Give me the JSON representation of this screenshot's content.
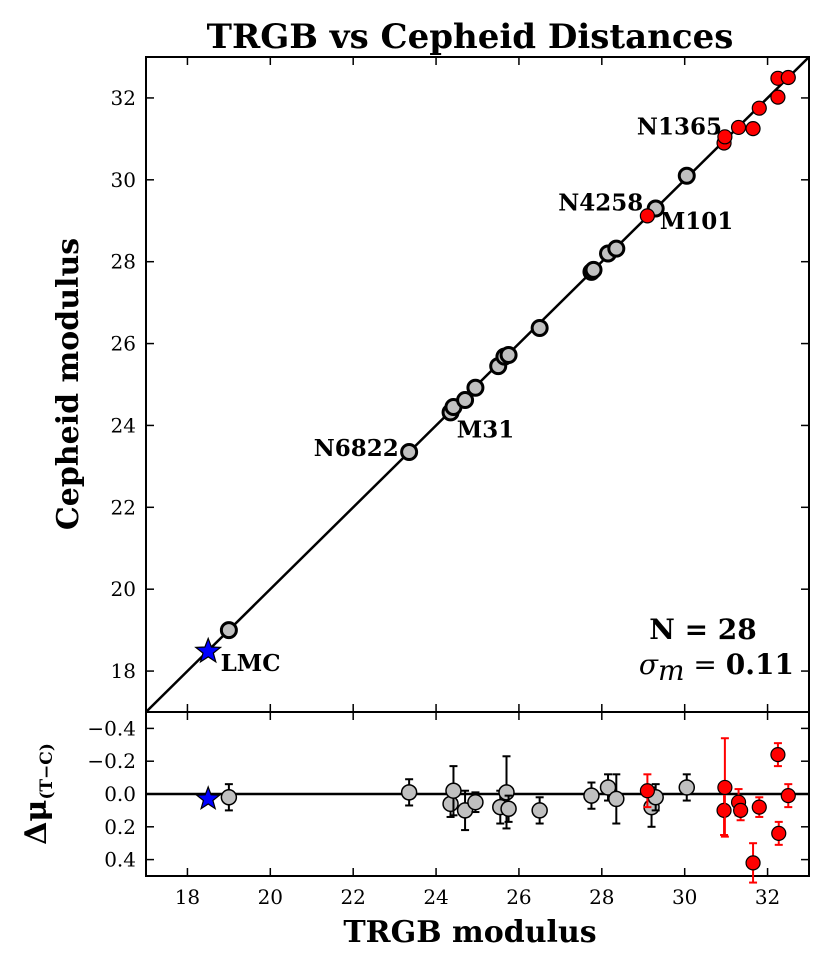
{
  "chart_data": [
    {
      "type": "scatter",
      "panel": "main",
      "title": "TRGB vs Cepheid Distances",
      "xlabel": "TRGB modulus",
      "ylabel": "Cepheid modulus",
      "xlim": [
        17,
        33
      ],
      "ylim": [
        17,
        33
      ],
      "xticks": [
        18,
        20,
        22,
        24,
        26,
        28,
        30,
        32
      ],
      "yticks": [
        18,
        20,
        22,
        24,
        26,
        28,
        30,
        32
      ],
      "reference_line": "y = x",
      "series": [
        {
          "name": "gray",
          "color": "#c0c0c0",
          "marker": "circle",
          "points": [
            [
              19.0,
              19.0
            ],
            [
              23.35,
              23.35
            ],
            [
              24.35,
              24.32
            ],
            [
              24.42,
              24.45
            ],
            [
              24.7,
              24.62
            ],
            [
              24.95,
              24.92
            ],
            [
              25.5,
              25.45
            ],
            [
              25.65,
              25.68
            ],
            [
              25.75,
              25.72
            ],
            [
              26.5,
              26.38
            ],
            [
              27.75,
              27.75
            ],
            [
              27.8,
              27.8
            ],
            [
              28.15,
              28.2
            ],
            [
              28.35,
              28.32
            ],
            [
              29.3,
              29.3
            ],
            [
              30.05,
              30.1
            ]
          ]
        },
        {
          "name": "red",
          "color": "#ff0000",
          "marker": "circle",
          "points": [
            [
              29.1,
              29.12
            ],
            [
              30.95,
              30.9
            ],
            [
              30.97,
              31.05
            ],
            [
              31.3,
              31.28
            ],
            [
              31.65,
              31.25
            ],
            [
              31.8,
              31.75
            ],
            [
              32.25,
              32.02
            ],
            [
              32.25,
              32.48
            ],
            [
              32.5,
              32.5
            ]
          ]
        },
        {
          "name": "LMC",
          "color": "#0000ff",
          "marker": "star",
          "points": [
            [
              18.5,
              18.48
            ]
          ]
        }
      ],
      "annotations": [
        {
          "text": "N1365",
          "x": 30.9,
          "y": 31.3
        },
        {
          "text": "N4258",
          "x": 29.0,
          "y": 29.45
        },
        {
          "text": "M101",
          "x": 29.4,
          "y": 29.0
        },
        {
          "text": "M31",
          "x": 24.5,
          "y": 23.9
        },
        {
          "text": "N6822",
          "x": 23.1,
          "y": 23.45
        },
        {
          "text": "LMC",
          "x": 18.8,
          "y": 18.2
        }
      ],
      "stats": {
        "n_label": "N = 28",
        "sigma_symbol": "σ",
        "sigma_sub": "m",
        "sigma_equals": " = ",
        "sigma_value": "0.11"
      }
    },
    {
      "type": "scatter",
      "panel": "residuals",
      "xlabel": "TRGB modulus",
      "ylabel_symbol": "Δμ",
      "ylabel_sub": "(T−C)",
      "xlim": [
        17,
        33
      ],
      "ylim": [
        0.5,
        -0.5
      ],
      "yticks": [
        -0.4,
        -0.2,
        0.0,
        0.2,
        0.4
      ],
      "ytick_labels": [
        "−0.4",
        "−0.2",
        "0.0",
        "0.2",
        "0.4"
      ],
      "reference_line": "y = 0",
      "series": [
        {
          "name": "gray",
          "color": "#c0c0c0",
          "points": [
            [
              19.0,
              0.02,
              0.08
            ],
            [
              23.35,
              -0.01,
              0.08
            ],
            [
              24.35,
              0.06,
              0.08
            ],
            [
              24.42,
              -0.02,
              0.15
            ],
            [
              24.7,
              0.1,
              0.12
            ],
            [
              24.95,
              0.05,
              0.06
            ],
            [
              25.55,
              0.08,
              0.1
            ],
            [
              25.7,
              -0.01,
              0.22
            ],
            [
              25.75,
              0.09,
              0.08
            ],
            [
              26.5,
              0.1,
              0.08
            ],
            [
              27.75,
              0.01,
              0.08
            ],
            [
              28.15,
              -0.04,
              0.08
            ],
            [
              28.35,
              0.03,
              0.15
            ],
            [
              29.2,
              0.08,
              0.12
            ],
            [
              29.3,
              0.02,
              0.08
            ],
            [
              30.05,
              -0.04,
              0.08
            ]
          ]
        },
        {
          "name": "red",
          "color": "#ff0000",
          "points": [
            [
              29.1,
              -0.02,
              0.1
            ],
            [
              30.95,
              0.1,
              0.15
            ],
            [
              30.97,
              -0.04,
              0.3
            ],
            [
              31.3,
              0.05,
              0.08
            ],
            [
              31.35,
              0.1,
              0.06
            ],
            [
              31.65,
              0.42,
              0.12
            ],
            [
              31.8,
              0.08,
              0.06
            ],
            [
              32.25,
              -0.24,
              0.07
            ],
            [
              32.27,
              0.24,
              0.07
            ],
            [
              32.5,
              0.01,
              0.07
            ]
          ]
        },
        {
          "name": "LMC",
          "color": "#0000ff",
          "marker": "star",
          "points": [
            [
              18.5,
              0.03,
              0.0
            ]
          ]
        }
      ]
    }
  ]
}
